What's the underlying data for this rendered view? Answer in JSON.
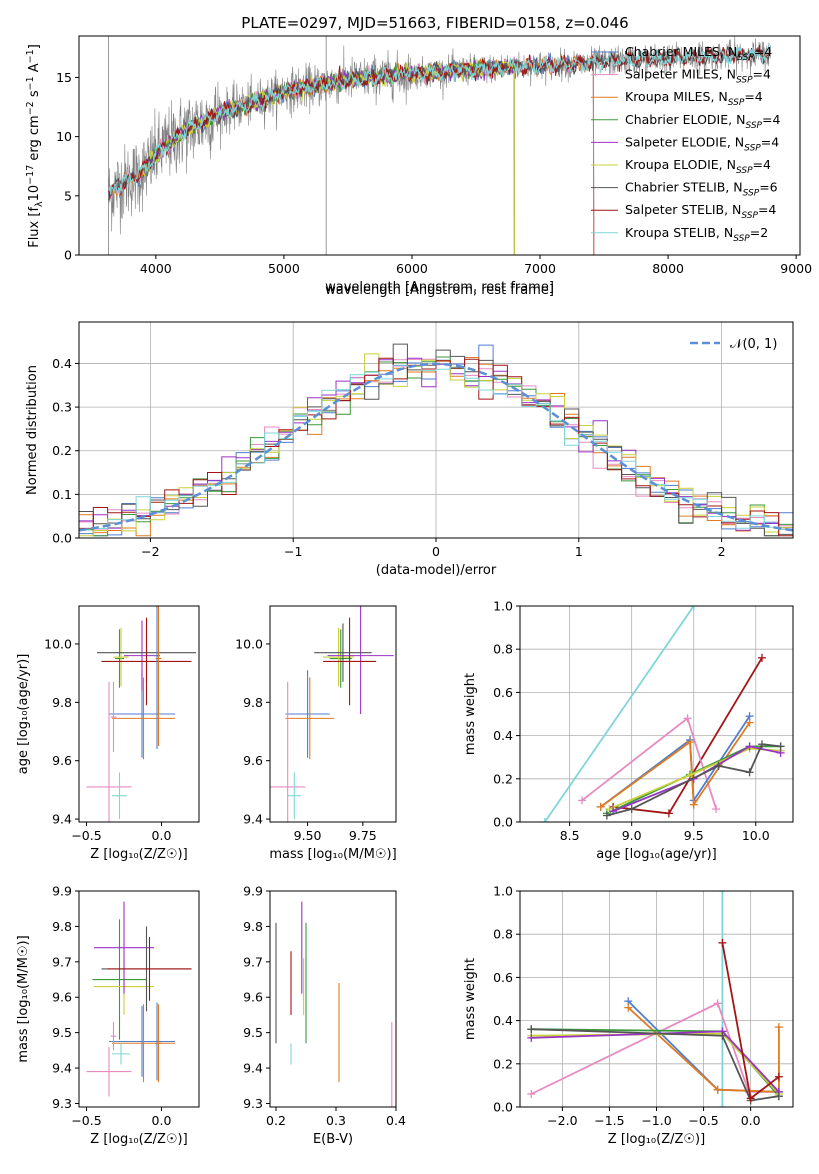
{
  "colors": {
    "blue": "#4f7fd0",
    "pink": "#e88ac2",
    "orange": "#e07b22",
    "green": "#3a9a3a",
    "purple": "#9b32c8",
    "yellow": "#c8d13a",
    "dark": "#555555",
    "red": "#a31515",
    "cyan": "#7ed6d8",
    "gray": "#808080",
    "normcurve": "#5b8fd6"
  },
  "chart_data": [
    {
      "id": "spectrum",
      "type": "line",
      "title": "PLATE=0297, MJD=51663, FIBERID=0158, z=0.046",
      "xlabel": "wavelength [Angstrom, rest frame]",
      "ylabel_parts": [
        "Flux [f",
        "λ",
        "10",
        "−17",
        " erg cm",
        "−2",
        " s",
        "−1",
        " A",
        "−1",
        "]"
      ],
      "xlim": [
        3400,
        9030
      ],
      "ylim": [
        0,
        18.5
      ],
      "xticks": [
        4000,
        5000,
        6000,
        7000,
        8000,
        9000
      ],
      "yticks": [
        0,
        5,
        10,
        15
      ],
      "legend_position": "top-right",
      "legend": [
        {
          "label": "Chabrier MILES, N",
          "sub": "SSP",
          "suffix": "=4",
          "color": "blue"
        },
        {
          "label": "Salpeter MILES, N",
          "sub": "SSP",
          "suffix": "=4",
          "color": "pink"
        },
        {
          "label": "Kroupa MILES, N",
          "sub": "SSP",
          "suffix": "=4",
          "color": "orange"
        },
        {
          "label": "Chabrier ELODIE, N",
          "sub": "SSP",
          "suffix": "=4",
          "color": "green"
        },
        {
          "label": "Salpeter ELODIE, N",
          "sub": "SSP",
          "suffix": "=4",
          "color": "purple"
        },
        {
          "label": "Kroupa ELODIE, N",
          "sub": "SSP",
          "suffix": "=4",
          "color": "yellow"
        },
        {
          "label": "Chabrier STELIB, N",
          "sub": "SSP",
          "suffix": "=6",
          "color": "dark"
        },
        {
          "label": "Salpeter STELIB, N",
          "sub": "SSP",
          "suffix": "=4",
          "color": "red"
        },
        {
          "label": "Kroupa STELIB, N",
          "sub": "SSP",
          "suffix": "=2",
          "color": "cyan"
        }
      ],
      "continuum": {
        "x": [
          3630,
          3700,
          3900,
          4000,
          4200,
          4500,
          4800,
          5000,
          5500,
          6000,
          6500,
          7000,
          7500,
          8000,
          8500,
          8800
        ],
        "y": [
          5.0,
          5.8,
          7.0,
          8.5,
          10.3,
          12.0,
          13.0,
          13.8,
          14.8,
          15.3,
          15.7,
          16.0,
          16.3,
          16.6,
          16.9,
          17.0
        ]
      },
      "model_ranges": {
        "MILES": [
          3630,
          7420
        ],
        "ELODIE": [
          3900,
          6800
        ],
        "STELIB": [
          3630,
          8800
        ]
      }
    },
    {
      "id": "residual-hist",
      "type": "line",
      "xlabel": "(data-model)/error",
      "ylabel": "Normed distribution",
      "xlim": [
        -2.5,
        2.5
      ],
      "ylim": [
        0,
        0.495
      ],
      "xticks": [
        -2,
        -1,
        0,
        1,
        2
      ],
      "yticks": [
        0.0,
        0.1,
        0.2,
        0.3,
        0.4
      ],
      "legend": "𝒩(0, 1)",
      "legend_position": "top-right",
      "bin_width": 0.1
    },
    {
      "id": "age-vs-Z",
      "type": "scatter",
      "xlabel": "Z [log₁₀(Z/Z☉)]",
      "ylabel": "age  [log₁₀(age/yr)]",
      "xlim": [
        -0.55,
        0.25
      ],
      "ylim": [
        9.39,
        10.13
      ],
      "xticks": [
        -0.5,
        0.0
      ],
      "yticks": [
        9.4,
        9.6,
        9.8,
        10.0
      ],
      "points": [
        {
          "c": "blue",
          "x": -0.13,
          "y": 9.76,
          "xe": 0.22,
          "ye": 0.15
        },
        {
          "c": "orange",
          "x": -0.12,
          "y": 9.745,
          "xe": 0.21,
          "ye": 0.14
        },
        {
          "c": "pink",
          "x": -0.35,
          "y": 9.51,
          "xe": 0.15,
          "ye": 0.36
        },
        {
          "c": "pink",
          "x": -0.32,
          "y": 9.75,
          "xe": 0.02,
          "ye": 0.12
        },
        {
          "c": "green",
          "x": -0.28,
          "y": 9.95,
          "xe": 0.03,
          "ye": 0.1
        },
        {
          "c": "yellow",
          "x": -0.27,
          "y": 9.955,
          "xe": 0.05,
          "ye": 0.1
        },
        {
          "c": "purple",
          "x": -0.13,
          "y": 9.96,
          "xe": 0.12,
          "ye": 0.12
        },
        {
          "c": "dark",
          "x": -0.1,
          "y": 9.97,
          "xe": 0.33,
          "ye": 0.1
        },
        {
          "c": "red",
          "x": -0.1,
          "y": 9.94,
          "xe": 0.3,
          "ye": 0.15
        },
        {
          "c": "cyan",
          "x": -0.28,
          "y": 9.48,
          "xe": 0.05,
          "ye": 0.08
        },
        {
          "c": "blue",
          "x": -0.03,
          "y": 9.96,
          "xe": 0.02,
          "ye": 0.32
        },
        {
          "c": "orange",
          "x": -0.02,
          "y": 9.95,
          "xe": 0.02,
          "ye": 0.3
        }
      ]
    },
    {
      "id": "age-vs-mass",
      "type": "scatter",
      "xlabel": "mass [log₁₀(M/M☉)]",
      "ylabel": "",
      "xlim": [
        9.33,
        9.9
      ],
      "ylim": [
        9.39,
        10.13
      ],
      "xticks": [
        9.5,
        9.75
      ],
      "yticks": [
        9.4,
        9.6,
        9.8,
        10.0
      ],
      "points": [
        {
          "c": "blue",
          "x": 9.5,
          "y": 9.76,
          "xe": 0.1,
          "ye": 0.15
        },
        {
          "c": "orange",
          "x": 9.51,
          "y": 9.745,
          "xe": 0.11,
          "ye": 0.14
        },
        {
          "c": "pink",
          "x": 9.41,
          "y": 9.51,
          "xe": 0.08,
          "ye": 0.36
        },
        {
          "c": "green",
          "x": 9.65,
          "y": 9.95,
          "xe": 0.05,
          "ye": 0.1
        },
        {
          "c": "yellow",
          "x": 9.64,
          "y": 9.955,
          "xe": 0.07,
          "ye": 0.1
        },
        {
          "c": "purple",
          "x": 9.74,
          "y": 9.96,
          "xe": 0.15,
          "ye": 0.2
        },
        {
          "c": "dark",
          "x": 9.66,
          "y": 9.97,
          "xe": 0.13,
          "ye": 0.1
        },
        {
          "c": "red",
          "x": 9.69,
          "y": 9.94,
          "xe": 0.12,
          "ye": 0.15
        },
        {
          "c": "cyan",
          "x": 9.44,
          "y": 9.48,
          "xe": 0.03,
          "ye": 0.08
        }
      ]
    },
    {
      "id": "weight-vs-age",
      "type": "line",
      "xlabel": "age  [log₁₀(age/yr)]",
      "ylabel": "mass weight",
      "xlim": [
        8.1,
        10.3
      ],
      "ylim": [
        0,
        1.0
      ],
      "xticks": [
        8.5,
        9.0,
        9.5,
        10.0
      ],
      "yticks": [
        0.0,
        0.2,
        0.4,
        0.6,
        0.8,
        1.0
      ],
      "series": [
        {
          "c": "cyan",
          "x": [
            8.3,
            9.5
          ],
          "y": [
            0.0,
            1.0
          ]
        },
        {
          "c": "red",
          "x": [
            8.85,
            9.3,
            10.05
          ],
          "y": [
            0.07,
            0.04,
            0.76
          ]
        },
        {
          "c": "pink",
          "x": [
            8.6,
            9.45,
            9.68
          ],
          "y": [
            0.1,
            0.48,
            0.06
          ]
        },
        {
          "c": "blue",
          "x": [
            8.75,
            9.47,
            9.5,
            9.95
          ],
          "y": [
            0.07,
            0.38,
            0.1,
            0.49
          ]
        },
        {
          "c": "orange",
          "x": [
            8.75,
            9.47,
            9.5,
            9.95
          ],
          "y": [
            0.07,
            0.37,
            0.08,
            0.46
          ]
        },
        {
          "c": "green",
          "x": [
            8.8,
            9.47,
            9.95,
            10.2
          ],
          "y": [
            0.04,
            0.22,
            0.35,
            0.35
          ]
        },
        {
          "c": "yellow",
          "x": [
            8.82,
            9.48,
            9.95,
            10.2
          ],
          "y": [
            0.06,
            0.22,
            0.34,
            0.33
          ]
        },
        {
          "c": "purple",
          "x": [
            8.85,
            9.5,
            9.95,
            10.2
          ],
          "y": [
            0.05,
            0.2,
            0.35,
            0.32
          ]
        },
        {
          "c": "dark",
          "x": [
            8.8,
            9.0,
            9.7,
            9.95,
            10.05,
            10.2
          ],
          "y": [
            0.03,
            0.06,
            0.26,
            0.23,
            0.36,
            0.35
          ]
        }
      ]
    },
    {
      "id": "mass-vs-Z",
      "type": "scatter",
      "xlabel": "Z [log₁₀(Z/Z☉)]",
      "ylabel": "mass [log₁₀(M/M☉)]",
      "xlim": [
        -0.55,
        0.25
      ],
      "ylim": [
        9.29,
        9.9
      ],
      "xticks": [
        -0.5,
        0.0
      ],
      "yticks": [
        9.3,
        9.4,
        9.5,
        9.6,
        9.7,
        9.8,
        9.9
      ],
      "points": [
        {
          "c": "blue",
          "x": -0.13,
          "y": 9.475,
          "xe": 0.22,
          "ye": 0.1
        },
        {
          "c": "orange",
          "x": -0.12,
          "y": 9.47,
          "xe": 0.21,
          "ye": 0.11
        },
        {
          "c": "pink",
          "x": -0.35,
          "y": 9.39,
          "xe": 0.15,
          "ye": 0.07
        },
        {
          "c": "pink",
          "x": -0.32,
          "y": 9.49,
          "xe": 0.02,
          "ye": 0.04
        },
        {
          "c": "green",
          "x": -0.28,
          "y": 9.65,
          "xe": 0.18,
          "ye": 0.17
        },
        {
          "c": "yellow",
          "x": -0.25,
          "y": 9.63,
          "xe": 0.2,
          "ye": 0.08
        },
        {
          "c": "purple",
          "x": -0.25,
          "y": 9.74,
          "xe": 0.2,
          "ye": 0.13
        },
        {
          "c": "dark",
          "x": -0.1,
          "y": 9.68,
          "xe": 0.3,
          "ye": 0.12
        },
        {
          "c": "red",
          "x": -0.08,
          "y": 9.68,
          "xe": 0.28,
          "ye": 0.09
        },
        {
          "c": "cyan",
          "x": -0.27,
          "y": 9.44,
          "xe": 0.06,
          "ye": 0.03
        },
        {
          "c": "blue",
          "x": -0.03,
          "y": 9.475,
          "xe": 0.02,
          "ye": 0.11
        },
        {
          "c": "orange",
          "x": -0.02,
          "y": 9.47,
          "xe": 0.02,
          "ye": 0.11
        }
      ]
    },
    {
      "id": "mass-vs-EBV",
      "type": "scatter",
      "xlabel": "E(B-V)",
      "ylabel": "",
      "xlim": [
        0.19,
        0.4
      ],
      "ylim": [
        9.29,
        9.9
      ],
      "xticks": [
        0.2,
        0.3,
        0.4
      ],
      "yticks": [
        9.3,
        9.4,
        9.5,
        9.6,
        9.7,
        9.8,
        9.9
      ],
      "points": [
        {
          "c": "dark",
          "x": 0.2,
          "y": 9.64,
          "xe": 0,
          "ye": 0.17
        },
        {
          "c": "cyan",
          "x": 0.225,
          "y": 9.44,
          "xe": 0,
          "ye": 0.03
        },
        {
          "c": "red",
          "x": 0.225,
          "y": 9.64,
          "xe": 0,
          "ye": 0.09
        },
        {
          "c": "purple",
          "x": 0.243,
          "y": 9.74,
          "xe": 0,
          "ye": 0.13
        },
        {
          "c": "yellow",
          "x": 0.246,
          "y": 9.63,
          "xe": 0,
          "ye": 0.08
        },
        {
          "c": "green",
          "x": 0.25,
          "y": 9.64,
          "xe": 0,
          "ye": 0.17
        },
        {
          "c": "orange",
          "x": 0.305,
          "y": 9.5,
          "xe": 0,
          "ye": 0.14
        },
        {
          "c": "pink",
          "x": 0.393,
          "y": 9.38,
          "xe": 0,
          "ye": 0.15
        }
      ]
    },
    {
      "id": "weight-vs-Z",
      "type": "line",
      "xlabel": "Z [log₁₀(Z/Z☉)]",
      "ylabel": "mass weight",
      "xlim": [
        -2.45,
        0.45
      ],
      "ylim": [
        0,
        1.0
      ],
      "xticks": [
        -2.0,
        -1.5,
        -1.0,
        -0.5,
        0.0
      ],
      "yticks": [
        0.0,
        0.2,
        0.4,
        0.6,
        0.8,
        1.0
      ],
      "series": [
        {
          "c": "cyan",
          "x": [
            -0.3,
            -0.3
          ],
          "y": [
            0.0,
            1.0
          ]
        },
        {
          "c": "pink",
          "x": [
            -2.33,
            -0.35,
            -0.02,
            0.3
          ],
          "y": [
            0.06,
            0.48,
            0.07,
            0.07
          ]
        },
        {
          "c": "blue",
          "x": [
            -1.3,
            -0.35,
            0.3
          ],
          "y": [
            0.49,
            0.08,
            0.07
          ]
        },
        {
          "c": "orange",
          "x": [
            -1.3,
            -0.35,
            0.3,
            0.3
          ],
          "y": [
            0.46,
            0.08,
            0.07,
            0.37
          ]
        },
        {
          "c": "green",
          "x": [
            -2.33,
            -0.3,
            0.3
          ],
          "y": [
            0.36,
            0.35,
            0.05
          ]
        },
        {
          "c": "yellow",
          "x": [
            -2.33,
            -0.3,
            0.3
          ],
          "y": [
            0.33,
            0.34,
            0.06
          ]
        },
        {
          "c": "purple",
          "x": [
            -2.33,
            -0.3,
            0.3
          ],
          "y": [
            0.32,
            0.35,
            0.07
          ]
        },
        {
          "c": "dark",
          "x": [
            -2.33,
            -0.3,
            0.0,
            0.3
          ],
          "y": [
            0.36,
            0.33,
            0.03,
            0.05
          ]
        },
        {
          "c": "red",
          "x": [
            -0.3,
            0.0,
            0.3
          ],
          "y": [
            0.76,
            0.04,
            0.14
          ]
        }
      ]
    }
  ]
}
